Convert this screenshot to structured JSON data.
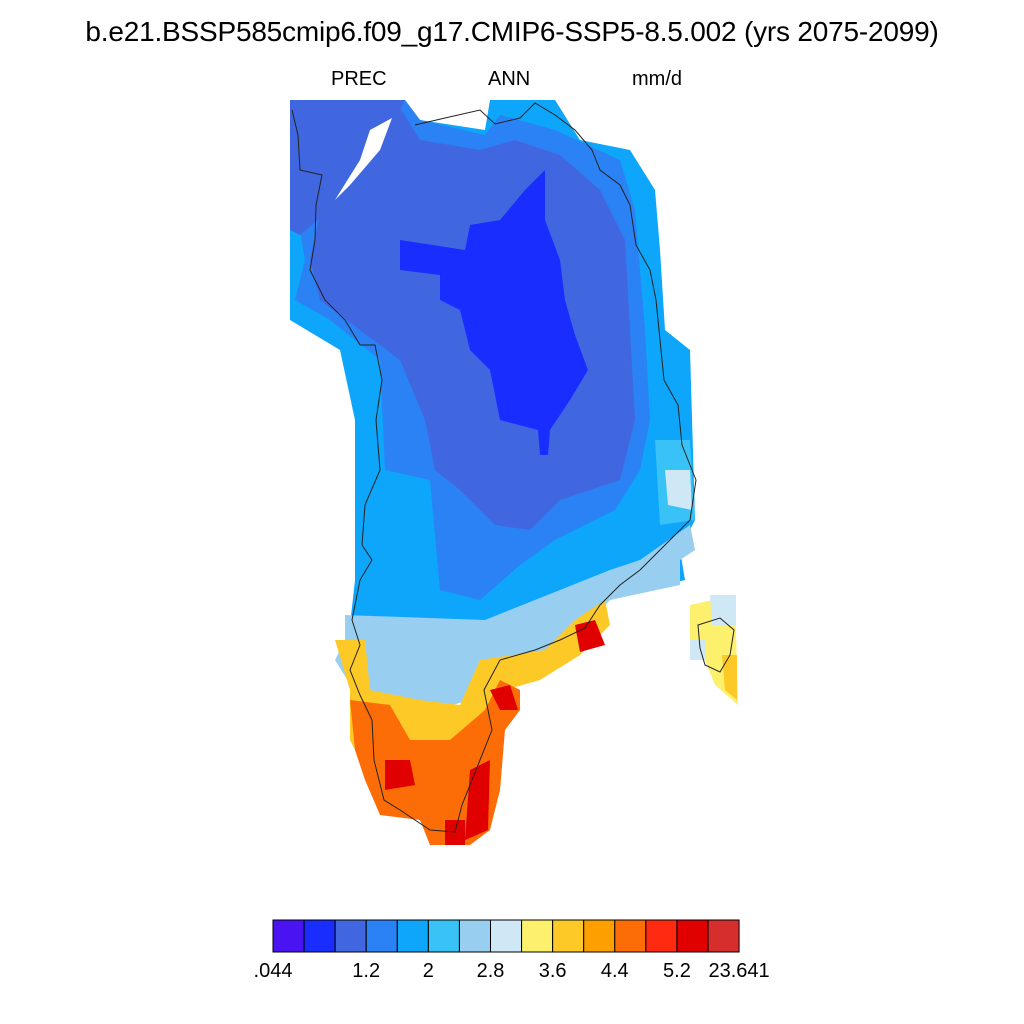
{
  "title": "b.e21.BSSP585cmip6.f09_g17.CMIP6-SSP5-8.5.002 (yrs 2075-2099)",
  "subtitle": {
    "variable": "PREC",
    "season": "ANN",
    "units": "mm/d"
  },
  "colorbar": {
    "colors": [
      "#4a14f2",
      "#1a2dff",
      "#4067e0",
      "#2a82f5",
      "#0ea6fa",
      "#38c2f5",
      "#98cef0",
      "#cfe8f6",
      "#fdf06c",
      "#fdc926",
      "#fe9f00",
      "#fd6d07",
      "#ff2a0f",
      "#e00000",
      "#d62d2d"
    ],
    "tick_labels": [
      ".044",
      "1.2",
      "2",
      "2.8",
      "3.6",
      "4.4",
      "5.2",
      "23.641"
    ]
  }
}
